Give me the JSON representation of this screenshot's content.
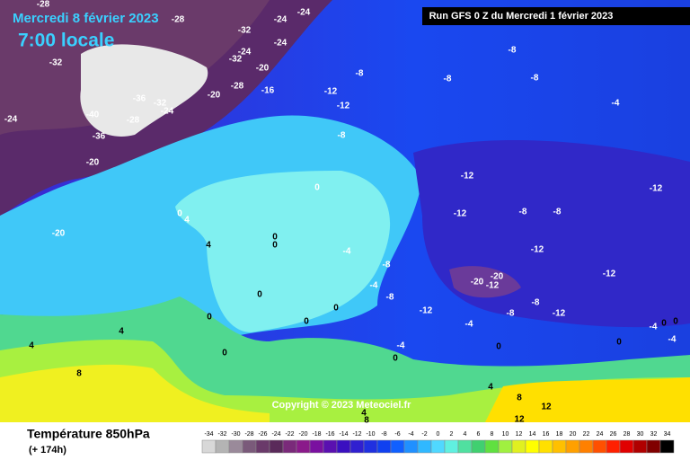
{
  "header": {
    "date": "Mercredi 8 février 2023",
    "time": "7:00 locale"
  },
  "run": "Run GFS 0 Z du Mercredi 1 février 2023",
  "copyright": "Copyright © 2023 Meteociel.fr",
  "footer": {
    "title": "Température 850hPa",
    "subtitle": "(+ 174h)"
  },
  "isotherm_labels": [
    -28,
    -28,
    -24,
    -24,
    -32,
    -24,
    -32,
    -24,
    -20,
    -32,
    -36,
    -32,
    -28,
    -20,
    -16,
    -24,
    -24,
    -40,
    -28,
    -36,
    -20,
    -20,
    -8,
    -8,
    -8,
    -8,
    -12,
    -12,
    -8,
    -4,
    -12,
    -12,
    -12,
    -8,
    -8,
    0,
    0,
    4,
    0,
    0,
    4,
    -4,
    -8,
    -12,
    -12,
    -4,
    -8,
    -20,
    -20,
    -12,
    0,
    0,
    -12,
    -8,
    -8,
    -12,
    0,
    0,
    -4,
    -4,
    0,
    0,
    0,
    4,
    4,
    0,
    -4,
    0,
    -4,
    0,
    8,
    4,
    8,
    4,
    12,
    8,
    12
  ],
  "legend": {
    "ticks": [
      -34,
      -32,
      -30,
      -28,
      -26,
      -24,
      -22,
      -20,
      -18,
      -16,
      -14,
      -12,
      -10,
      -8,
      -6,
      -4,
      -2,
      0,
      2,
      4,
      6,
      8,
      10,
      12,
      14,
      16,
      18,
      20,
      22,
      24,
      26,
      28,
      30,
      32,
      34
    ],
    "colors": [
      "#d8d8d8",
      "#b4b4b4",
      "#9a8a9a",
      "#7a5a7a",
      "#6a3a6a",
      "#5a2a5a",
      "#7a2a7a",
      "#8a1a8a",
      "#7a10a0",
      "#5a10b0",
      "#3a10c0",
      "#3020d0",
      "#2030e0",
      "#1040f0",
      "#1060ff",
      "#2090ff",
      "#30b8ff",
      "#50d8ff",
      "#60f0e0",
      "#50e0a0",
      "#40d070",
      "#60e040",
      "#a0f040",
      "#e0f020",
      "#ffff00",
      "#ffe000",
      "#ffc000",
      "#ffa000",
      "#ff8000",
      "#ff5000",
      "#ff2000",
      "#e00000",
      "#b00000",
      "#800000",
      "#000000"
    ]
  }
}
